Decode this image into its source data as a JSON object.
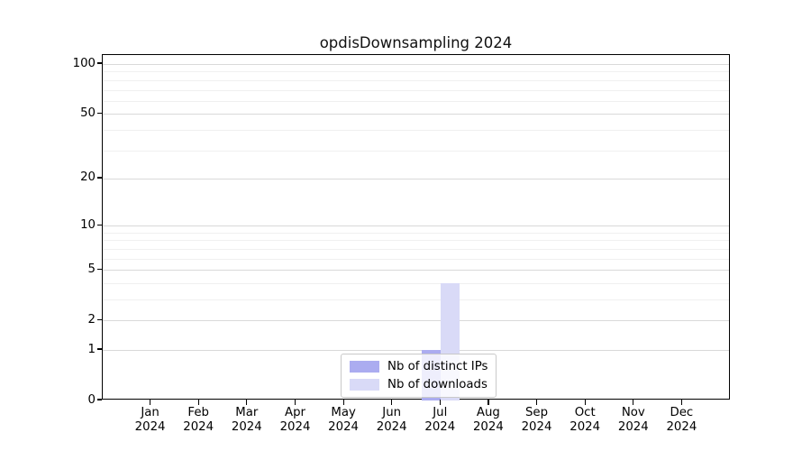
{
  "chart_data": {
    "type": "bar",
    "title": "opdisDownsampling 2024",
    "categories": [
      {
        "month": "Jan",
        "year": "2024"
      },
      {
        "month": "Feb",
        "year": "2024"
      },
      {
        "month": "Mar",
        "year": "2024"
      },
      {
        "month": "Apr",
        "year": "2024"
      },
      {
        "month": "May",
        "year": "2024"
      },
      {
        "month": "Jun",
        "year": "2024"
      },
      {
        "month": "Jul",
        "year": "2024"
      },
      {
        "month": "Aug",
        "year": "2024"
      },
      {
        "month": "Sep",
        "year": "2024"
      },
      {
        "month": "Oct",
        "year": "2024"
      },
      {
        "month": "Nov",
        "year": "2024"
      },
      {
        "month": "Dec",
        "year": "2024"
      }
    ],
    "series": [
      {
        "name": "Nb of distinct IPs",
        "color": "#abacf0",
        "values": [
          0,
          0,
          0,
          0,
          0,
          0,
          1,
          0,
          0,
          0,
          0,
          0
        ]
      },
      {
        "name": "Nb of downloads",
        "color": "#d9daf7",
        "values": [
          0,
          0,
          0,
          0,
          0,
          0,
          4,
          0,
          0,
          0,
          0,
          0
        ]
      }
    ],
    "yscale": "log10(1+x)",
    "yticks": [
      0,
      1,
      2,
      5,
      10,
      20,
      50,
      100
    ],
    "yticks_minor": [
      3,
      4,
      6,
      7,
      8,
      9,
      30,
      40,
      60,
      70,
      80,
      90
    ],
    "ylim": [
      0,
      113
    ],
    "xlabel": "",
    "ylabel": "",
    "grid": "horizontal",
    "legend_position": "lower center"
  }
}
